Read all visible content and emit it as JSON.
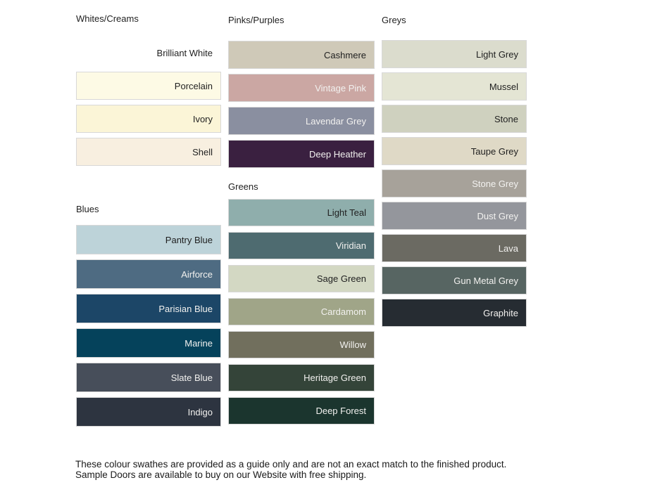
{
  "sections": [
    {
      "title": "Whites/Creams",
      "swatches": [
        {
          "name": "Brilliant White",
          "color": "#FFFFFF",
          "text_color": "#1F1F1F",
          "bordered": false
        },
        {
          "name": "Porcelain",
          "color": "#FDFAE5",
          "text_color": "#1F1F1F",
          "bordered": true
        },
        {
          "name": "Ivory",
          "color": "#FBF5D7",
          "text_color": "#1F1F1F",
          "bordered": true
        },
        {
          "name": "Shell",
          "color": "#F8EFE0",
          "text_color": "#1F1F1F",
          "bordered": true
        }
      ]
    },
    {
      "title": "Pinks/Purples",
      "swatches": [
        {
          "name": "Cashmere",
          "color": "#CFC9B8",
          "text_color": "#1F1F1F",
          "bordered": true
        },
        {
          "name": "Vintage Pink",
          "color": "#CBA7A3",
          "text_color": "#F2F1EF",
          "bordered": true
        },
        {
          "name": "Lavendar Grey",
          "color": "#8A8FA0",
          "text_color": "#F2F1EF",
          "bordered": true
        },
        {
          "name": "Deep Heather",
          "color": "#3A2040",
          "text_color": "#F2F1EF",
          "bordered": true
        }
      ]
    },
    {
      "title": "Greys",
      "swatches": [
        {
          "name": "Light Grey",
          "color": "#DBDCCD",
          "text_color": "#1F1F1F",
          "bordered": true
        },
        {
          "name": "Mussel",
          "color": "#E4E5D4",
          "text_color": "#1F1F1F",
          "bordered": true
        },
        {
          "name": "Stone",
          "color": "#CFD1BF",
          "text_color": "#1F1F1F",
          "bordered": true
        },
        {
          "name": "Taupe Grey",
          "color": "#DFD9C6",
          "text_color": "#1F1F1F",
          "bordered": true
        },
        {
          "name": "Stone Grey",
          "color": "#A7A29A",
          "text_color": "#F2F1EF",
          "bordered": true
        },
        {
          "name": "Dust Grey",
          "color": "#94969C",
          "text_color": "#F2F1EF",
          "bordered": true
        },
        {
          "name": "Lava",
          "color": "#6B6A62",
          "text_color": "#F2F1EF",
          "bordered": true
        },
        {
          "name": "Gun Metal Grey",
          "color": "#576562",
          "text_color": "#F2F1EF",
          "bordered": true
        },
        {
          "name": "Graphite",
          "color": "#262C32",
          "text_color": "#F2F1EF",
          "bordered": true
        }
      ]
    },
    {
      "title": "Blues",
      "swatches": [
        {
          "name": "Pantry Blue",
          "color": "#BDD3D9",
          "text_color": "#1F1F1F",
          "bordered": true
        },
        {
          "name": "Airforce",
          "color": "#4E6B82",
          "text_color": "#F2F1EF",
          "bordered": true
        },
        {
          "name": "Parisian Blue",
          "color": "#1C4667",
          "text_color": "#F2F1EF",
          "bordered": true
        },
        {
          "name": "Marine",
          "color": "#05425B",
          "text_color": "#F2F1EF",
          "bordered": true
        },
        {
          "name": "Slate Blue",
          "color": "#474E5A",
          "text_color": "#F2F1EF",
          "bordered": true
        },
        {
          "name": "Indigo",
          "color": "#2D3440",
          "text_color": "#F2F1EF",
          "bordered": true
        }
      ]
    },
    {
      "title": "Greens",
      "swatches": [
        {
          "name": "Light Teal",
          "color": "#8FAEAC",
          "text_color": "#1F1F1F",
          "bordered": true
        },
        {
          "name": "Viridian",
          "color": "#4E6B70",
          "text_color": "#F2F1EF",
          "bordered": true
        },
        {
          "name": "Sage Green",
          "color": "#D3D8C3",
          "text_color": "#1F1F1F",
          "bordered": true
        },
        {
          "name": "Cardamom",
          "color": "#A0A588",
          "text_color": "#F2F1EF",
          "bordered": true
        },
        {
          "name": "Willow",
          "color": "#716F5D",
          "text_color": "#F2F1EF",
          "bordered": true
        },
        {
          "name": "Heritage Green",
          "color": "#344439",
          "text_color": "#F2F1EF",
          "bordered": true
        },
        {
          "name": "Deep Forest",
          "color": "#1B352E",
          "text_color": "#F2F1EF",
          "bordered": true
        }
      ]
    }
  ],
  "footer": {
    "text": "These colour swathes are provided as a guide only and are not an exact match to the finished product.  Sample Doors are available to buy on our Website with free shipping."
  }
}
